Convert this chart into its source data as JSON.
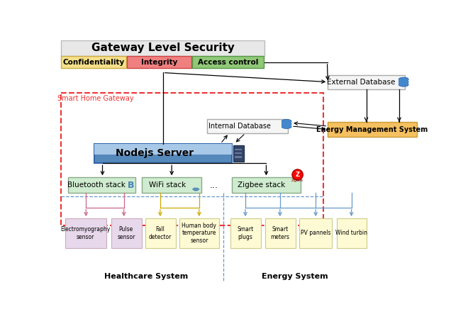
{
  "bg_color": "#ffffff",
  "title": "Gateway Level Security",
  "gateway_label": "Smart Home Gateway",
  "confidentiality_label": "Confidentiality",
  "integrity_label": "Integrity",
  "access_control_label": "Access control",
  "external_db_label": "External Database",
  "energy_mgmt_label": "Energy Management System",
  "internal_db_label": "Internal Database",
  "nodejs_label": "Nodejs Server",
  "bluetooth_label": "Bluetooth stack",
  "wifi_label": "WiFi stack",
  "dots_label": "...",
  "zigbee_label": "Zigbee stack",
  "healthcare_label": "Healthcare System",
  "energy_system_label": "Energy System",
  "sensor_labels": [
    "Electromyography\nsensor",
    "Pulse\nsensor",
    "Fall\ndetector",
    "Human body\ntemperature\nsensor",
    "Smart\nplugs",
    "Smart\nmeters",
    "PV pannels",
    "Wind turbin"
  ],
  "sensor_colors": [
    "#e8d5e8",
    "#e8d5e8",
    "#fef9d0",
    "#fef9d0",
    "#fef9d0",
    "#fef9d0",
    "#fef9d0",
    "#fef9d0"
  ],
  "colors": {
    "security_bg": "#e8e8e8",
    "confidentiality": "#f5e08a",
    "integrity": "#f08080",
    "access_control": "#90c878",
    "external_db_bg": "#f5f5f5",
    "energy_mgmt": "#f5c060",
    "internal_db_bg": "#f5f5f5",
    "nodejs_top": "#a8c8e8",
    "nodejs_bottom": "#5588bb",
    "nodejs_server_icon": "#334466",
    "bluetooth_bg": "#d0ecd0",
    "bluetooth_border": "#88aa88",
    "wifi_bg": "#d0ecd0",
    "wifi_border": "#88aa88",
    "zigbee_bg": "#d0ecd0",
    "zigbee_border": "#88aa88",
    "gateway_border": "#ee3333",
    "arrow_black": "#000000",
    "arrow_pink": "#cc4444",
    "arrow_yellow": "#ccaa00",
    "arrow_blue": "#6699cc"
  }
}
